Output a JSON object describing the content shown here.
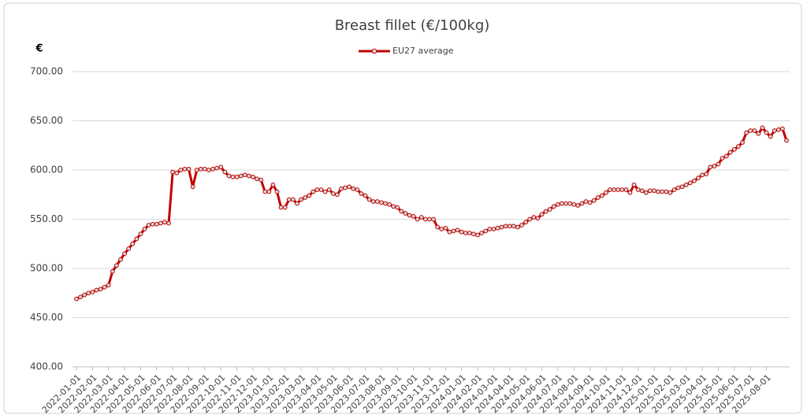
{
  "chart_data": {
    "type": "line",
    "title": "Breast fillet  (€/100kg)",
    "y_label": "€",
    "categories": [
      "2022-01-01",
      null,
      null,
      null,
      "2022-02-01",
      null,
      null,
      null,
      "2022-03-01",
      null,
      null,
      null,
      "2022-04-01",
      null,
      null,
      null,
      "2022-05-01",
      null,
      null,
      null,
      "2022-06-01",
      null,
      null,
      null,
      "2022-07-01",
      null,
      null,
      null,
      "2022-08-01",
      null,
      null,
      null,
      "2022-09-01",
      null,
      null,
      null,
      "2022-10-01",
      null,
      null,
      null,
      "2022-11-01",
      null,
      null,
      null,
      "2022-12-01",
      null,
      null,
      null,
      "2023-01-01",
      null,
      null,
      null,
      "2023-02-01",
      null,
      null,
      null,
      "2023-03-01",
      null,
      null,
      null,
      "2023-04-01",
      null,
      null,
      null,
      "2023-05-01",
      null,
      null,
      null,
      "2023-06-01",
      null,
      null,
      null,
      "2023-07-01",
      null,
      null,
      null,
      "2023-08-01",
      null,
      null,
      null,
      "2023-09-01",
      null,
      null,
      null,
      "2023-10-01",
      null,
      null,
      null,
      "2023-11-01",
      null,
      null,
      null,
      "2023-12-01",
      null,
      null,
      null,
      "2024-01-01",
      null,
      null,
      null,
      "2024-02-01",
      null,
      null,
      null,
      "2024-03-01",
      null,
      null,
      null,
      "2024-04-01",
      null,
      null,
      null,
      "2024-05-01",
      null,
      null,
      null,
      "2024-06-01",
      null,
      null,
      null,
      "2024-07-01",
      null,
      null,
      null,
      "2024-08-01",
      null,
      null,
      null,
      "2024-09-01",
      null,
      null,
      null,
      "2024-10-01",
      null,
      null,
      null,
      "2024-11-01",
      null,
      null,
      null,
      "2024-12-01",
      null,
      null,
      null,
      "2025-01-01",
      null,
      null,
      null,
      "2025-02-01",
      null,
      null,
      null,
      "2025-03-01",
      null,
      null,
      null,
      "2025-04-01",
      null,
      null,
      null,
      "2025-05-01",
      null,
      null,
      null,
      "2025-06-01",
      null,
      null,
      null,
      "2025-07-01",
      null,
      null,
      null,
      "2025-08-01",
      null,
      null,
      null,
      null,
      null
    ],
    "series": [
      {
        "name": "EU27 average",
        "color": "#c00000",
        "values": [
          469,
          471,
          473,
          475,
          476,
          478,
          479,
          481,
          483,
          497,
          503,
          509,
          515,
          520,
          525,
          530,
          535,
          540,
          544,
          545,
          545,
          546,
          547,
          546,
          598,
          597,
          600,
          601,
          601,
          583,
          600,
          601,
          601,
          600,
          601,
          602,
          603,
          598,
          594,
          593,
          593,
          594,
          595,
          594,
          593,
          591,
          590,
          578,
          578,
          585,
          578,
          562,
          562,
          570,
          570,
          566,
          570,
          572,
          574,
          578,
          580,
          580,
          578,
          580,
          576,
          575,
          581,
          582,
          583,
          581,
          580,
          576,
          574,
          570,
          568,
          568,
          567,
          566,
          565,
          563,
          562,
          558,
          556,
          554,
          553,
          550,
          552,
          550,
          550,
          550,
          542,
          540,
          541,
          537,
          538,
          539,
          537,
          536,
          536,
          535,
          534,
          536,
          538,
          540,
          540,
          541,
          542,
          543,
          543,
          543,
          542,
          544,
          547,
          550,
          552,
          551,
          555,
          558,
          560,
          563,
          565,
          566,
          566,
          566,
          565,
          564,
          566,
          568,
          567,
          569,
          572,
          574,
          577,
          580,
          580,
          580,
          580,
          580,
          577,
          585,
          580,
          579,
          577,
          579,
          579,
          578,
          578,
          578,
          577,
          580,
          582,
          583,
          585,
          587,
          589,
          592,
          595,
          596,
          603,
          604,
          606,
          612,
          614,
          618,
          621,
          624,
          628,
          638,
          640,
          640,
          637,
          643,
          638,
          634,
          640,
          641,
          642,
          630
        ]
      }
    ],
    "ylim": [
      400,
      700
    ],
    "yticks": [
      {
        "value": 400,
        "label": "400.00"
      },
      {
        "value": 450,
        "label": "450.00"
      },
      {
        "value": 500,
        "label": "500.00"
      },
      {
        "value": 550,
        "label": "550.00"
      },
      {
        "value": 600,
        "label": "600.00"
      },
      {
        "value": 650,
        "label": "650.00"
      },
      {
        "value": 700,
        "label": "700.00"
      }
    ],
    "grid": true,
    "legend": "top"
  }
}
